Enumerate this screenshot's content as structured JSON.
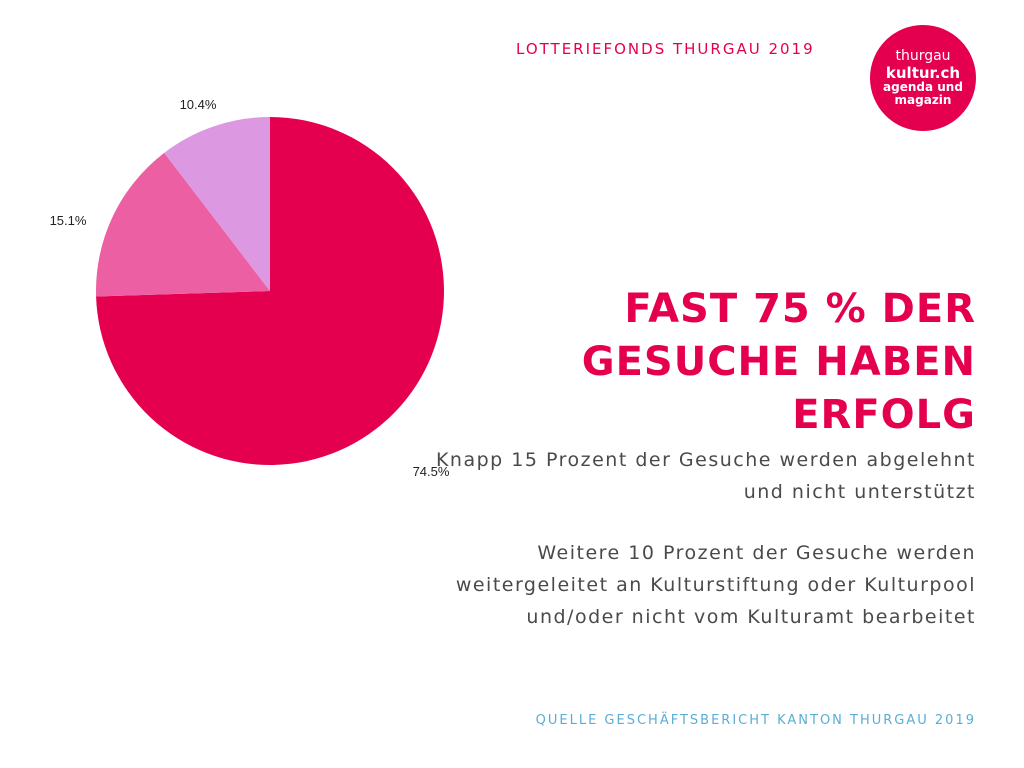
{
  "header": {
    "title": "LOTTERIEFONDS THURGAU 2019"
  },
  "logo": {
    "line1": "thurgau",
    "line2": "kultur.ch",
    "line3": "agenda und",
    "line4": "magazin"
  },
  "headline": "FAST 75 % DER GESUCHE HABEN ERFOLG",
  "paragraphs": [
    "Knapp 15 Prozent der Gesuche werden abgelehnt und nicht unterstützt",
    "Weitere 10 Prozent der Gesuche werden weitergeleitet an Kulturstiftung oder Kulturpool und/oder nicht vom Kulturamt bearbeitet"
  ],
  "source": "QUELLE GESCHÄFTSBERICHT KANTON THURGAU 2019",
  "chart_data": {
    "type": "pie",
    "title": "",
    "slices": [
      {
        "value": 74.5,
        "label": "74.5%",
        "color": "#e5004f"
      },
      {
        "value": 15.1,
        "label": "15.1%",
        "color": "#ec5fa3"
      },
      {
        "value": 10.4,
        "label": "10.4%",
        "color": "#dc99e1"
      }
    ],
    "start": "12 o'clock",
    "direction": "clockwise",
    "legend": "none"
  }
}
